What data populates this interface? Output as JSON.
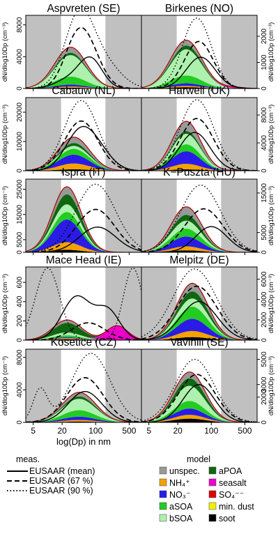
{
  "chart_data": {
    "type": "area",
    "x_scale": "log",
    "xlabel": "log(Dp) in nm",
    "ylabel": "dN/dlog10Dp (cm⁻³)",
    "x_ticks": [
      5,
      20,
      100,
      500
    ],
    "x_tick_labels": [
      "5",
      "20",
      "100",
      "500"
    ],
    "xlim": [
      3.5,
      900
    ],
    "legend": {
      "measured_title": "meas.",
      "measured": [
        {
          "label": "EUSAAR (mean)",
          "style": "solid"
        },
        {
          "label": "EUSAAR (67 %)",
          "style": "dashed"
        },
        {
          "label": "EUSAAR (90 %)",
          "style": "dotted"
        }
      ],
      "model_title": "model",
      "model": [
        {
          "label": "unspec.",
          "color": "#999999"
        },
        {
          "label": "NH₄⁺",
          "color": "#f5a100"
        },
        {
          "label": "NO₃⁻",
          "color": "#2a1ce6"
        },
        {
          "label": "aSOA",
          "color": "#22cc22"
        },
        {
          "label": "bSOA",
          "color": "#aef0ae"
        },
        {
          "label": "aPOA",
          "color": "#116611"
        },
        {
          "label": "seasalt",
          "color": "#ee00cc"
        },
        {
          "label": "SO₄⁻⁻",
          "color": "#dd0000"
        },
        {
          "label": "min. dust",
          "color": "#f0f000"
        },
        {
          "label": "soot",
          "color": "#000000"
        }
      ]
    },
    "panels": [
      {
        "title": "Aspvreten (SE)",
        "y_ticks": [
          0,
          4000,
          8000
        ],
        "ylim": [
          0,
          9200
        ],
        "grey_ranges": [
          [
            3.5,
            19
          ],
          [
            160,
            900
          ]
        ],
        "model_total": {
          "peak": 3600,
          "mode": 30,
          "sigma": 0.33
        },
        "components": {
          "bSOA": 2700,
          "aSOA": 1000,
          "NO3": 250,
          "NH4": 150,
          "unspec": 700,
          "aPOA": 300,
          "soot": 100
        },
        "mean": {
          "peaks": [
            [
              80,
              3500,
              0.24
            ],
            [
              30,
              1200,
              0.3
            ]
          ]
        },
        "p67": {
          "peaks": [
            [
              60,
              5800,
              0.3
            ],
            [
              35,
              2500,
              0.25
            ]
          ]
        },
        "p90": {
          "peaks": [
            [
              45,
              9000,
              0.3
            ],
            [
              150,
              3000,
              0.35
            ]
          ]
        }
      },
      {
        "title": "Birkenes (NO)",
        "y_ticks": [
          0,
          1000,
          2000
        ],
        "ylim": [
          0,
          2800
        ],
        "grey_ranges": [
          [
            3.5,
            19
          ],
          [
            160,
            900
          ]
        ],
        "model_total": {
          "peak": 1300,
          "mode": 30,
          "sigma": 0.33
        },
        "components": {
          "bSOA": 1000,
          "aSOA": 300,
          "NO3": 100,
          "NH4": 50,
          "seasalt": 50,
          "unspec": 200,
          "aPOA": 150,
          "soot": 50
        },
        "mean": {
          "peaks": [
            [
              60,
              1200,
              0.3
            ]
          ]
        },
        "p67": {
          "peaks": [
            [
              55,
              1800,
              0.3
            ]
          ]
        },
        "p90": {
          "peaks": [
            [
              50,
              2700,
              0.3
            ]
          ]
        }
      },
      {
        "title": "Cabauw (NL)",
        "y_ticks": [
          0,
          10000,
          20000
        ],
        "ylim": [
          0,
          25000
        ],
        "grey_ranges": [
          [
            3.5,
            19
          ],
          [
            160,
            900
          ]
        ],
        "model_total": {
          "peak": 11000,
          "mode": 35,
          "sigma": 0.33
        },
        "components": {
          "bSOA": 1000,
          "aSOA": 2000,
          "NO3": 3000,
          "NH4": 2000,
          "unspec": 2000,
          "aPOA": 1000,
          "soot": 500
        },
        "mean": {
          "peaks": [
            [
              45,
              12000,
              0.3
            ],
            [
              110,
              6000,
              0.3
            ]
          ]
        },
        "p67": {
          "peaks": [
            [
              50,
              17000,
              0.35
            ]
          ]
        },
        "p90": {
          "peaks": [
            [
              50,
              24000,
              0.35
            ]
          ]
        }
      },
      {
        "title": "Harwell (UK)",
        "y_ticks": [
          0,
          4000,
          8000
        ],
        "ylim": [
          0,
          10500
        ],
        "grey_ranges": [
          [
            3.5,
            19
          ],
          [
            160,
            900
          ]
        ],
        "model_total": {
          "peak": 7200,
          "mode": 30,
          "sigma": 0.3
        },
        "components": {
          "bSOA": 1500,
          "aSOA": 1000,
          "NO3": 1800,
          "NH4": 800,
          "unspec": 1400,
          "aPOA": 400,
          "soot": 200
        },
        "mean": {
          "peaks": [
            [
              45,
              5500,
              0.32
            ]
          ]
        },
        "p67": {
          "peaks": [
            [
              50,
              7500,
              0.35
            ]
          ]
        },
        "p90": {
          "peaks": [
            [
              50,
              10200,
              0.35
            ]
          ]
        }
      },
      {
        "title": "Ispra (IT)",
        "y_ticks": [
          0,
          5000,
          15000,
          25000
        ],
        "ylim": [
          0,
          29000
        ],
        "grey_ranges": [
          [
            3.5,
            19
          ],
          [
            160,
            900
          ]
        ],
        "model_total": {
          "peak": 26000,
          "mode": 25,
          "sigma": 0.3
        },
        "components": {
          "bSOA": 3000,
          "aSOA": 3000,
          "NO3": 9000,
          "NH4": 3000,
          "unspec": 3000,
          "aPOA": 4000,
          "soot": 1000
        },
        "mean": {
          "peaks": [
            [
              110,
              10000,
              0.38
            ]
          ]
        },
        "p67": {
          "peaks": [
            [
              100,
              17000,
              0.4
            ]
          ]
        },
        "p90": {
          "peaks": [
            [
              100,
              27000,
              0.42
            ]
          ]
        }
      },
      {
        "title": "K−Puszta (HU)",
        "y_ticks": [
          0,
          5000,
          15000
        ],
        "ylim": [
          0,
          18500
        ],
        "grey_ranges": [
          [
            3.5,
            19
          ],
          [
            160,
            900
          ]
        ],
        "model_total": {
          "peak": 11500,
          "mode": 30,
          "sigma": 0.32
        },
        "components": {
          "bSOA": 2000,
          "aSOA": 2000,
          "NO3": 2500,
          "NH4": 1000,
          "unspec": 2000,
          "aPOA": 1500,
          "soot": 500
        },
        "mean": {
          "peaks": [
            [
              100,
              6500,
              0.33
            ]
          ]
        },
        "p67": {
          "peaks": [
            [
              70,
              11000,
              0.4
            ]
          ]
        },
        "p90": {
          "peaks": [
            [
              60,
              17000,
              0.42
            ]
          ]
        }
      },
      {
        "title": "Mace Head (IE)",
        "y_ticks": [
          0,
          200,
          400,
          600
        ],
        "ylim": [
          0,
          760
        ],
        "grey_ranges": [
          [
            3.5,
            19
          ],
          [
            160,
            900
          ]
        ],
        "model_total": {
          "peak": 200,
          "mode": 25,
          "sigma": 0.3
        },
        "components": {
          "bSOA": 30,
          "aSOA": 20,
          "NO3": 10,
          "NH4": 10,
          "seasalt": 150,
          "unspec": 30,
          "aPOA": 100,
          "soot": 10
        },
        "mean": {
          "peaks": [
            [
              40,
              450,
              0.3
            ],
            [
              180,
              300,
              0.25
            ]
          ]
        },
        "p67": {
          "peaks": [
            [
              70,
              180,
              0.35
            ]
          ]
        },
        "p90": {
          "peaks": [
            [
              10,
              750,
              0.25
            ],
            [
              600,
              750,
              0.2
            ]
          ]
        }
      },
      {
        "title": "Melpitz (DE)",
        "y_ticks": [
          0,
          2000,
          4000,
          6000
        ],
        "ylim": [
          0,
          7200
        ],
        "grey_ranges": [
          [
            3.5,
            19
          ],
          [
            160,
            900
          ]
        ],
        "model_total": {
          "peak": 5600,
          "mode": 40,
          "sigma": 0.33
        },
        "components": {
          "bSOA": 800,
          "aSOA": 1200,
          "NO3": 1200,
          "NH4": 600,
          "unspec": 800,
          "aPOA": 700,
          "soot": 300
        },
        "mean": {
          "peaks": [
            [
              55,
              3800,
              0.38
            ]
          ]
        },
        "p67": {
          "peaks": [
            [
              50,
              5300,
              0.42
            ]
          ]
        },
        "p90": {
          "peaks": [
            [
              45,
              7000,
              0.45
            ]
          ]
        }
      },
      {
        "title": "Kosetice (CZ)",
        "y_ticks": [
          0,
          4000,
          8000
        ],
        "ylim": [
          0,
          9000
        ],
        "grey_ranges": [
          [
            3.5,
            19
          ],
          [
            160,
            900
          ]
        ],
        "model_total": {
          "peak": 3500,
          "mode": 45,
          "sigma": 0.35
        },
        "components": {
          "bSOA": 1400,
          "aSOA": 800,
          "NO3": 400,
          "NH4": 200,
          "unspec": 500,
          "aPOA": 300,
          "soot": 100
        },
        "mean": {
          "peaks": [
            [
              60,
              3800,
              0.35
            ]
          ]
        },
        "p67": {
          "peaks": [
            [
              60,
              5500,
              0.38
            ]
          ]
        },
        "p90": {
          "peaks": [
            [
              80,
              8500,
              0.4
            ],
            [
              7,
              4000,
              0.15
            ]
          ]
        }
      },
      {
        "title": "Vavihill (SE)",
        "y_ticks": [
          0,
          2000,
          3000,
          5000
        ],
        "ylim": [
          0,
          5800
        ],
        "grey_ranges": [
          [
            3.5,
            19
          ],
          [
            160,
            900
          ]
        ],
        "model_total": {
          "peak": 4000,
          "mode": 35,
          "sigma": 0.33
        },
        "components": {
          "bSOA": 1200,
          "aSOA": 600,
          "NO3": 500,
          "NH4": 300,
          "unspec": 500,
          "aPOA": 600,
          "soot": 300
        },
        "mean": {
          "peaks": [
            [
              55,
              3000,
              0.33
            ]
          ]
        },
        "p67": {
          "peaks": [
            [
              50,
              3800,
              0.38
            ]
          ]
        },
        "p90": {
          "peaks": [
            [
              45,
              5000,
              0.4
            ]
          ]
        }
      }
    ]
  }
}
